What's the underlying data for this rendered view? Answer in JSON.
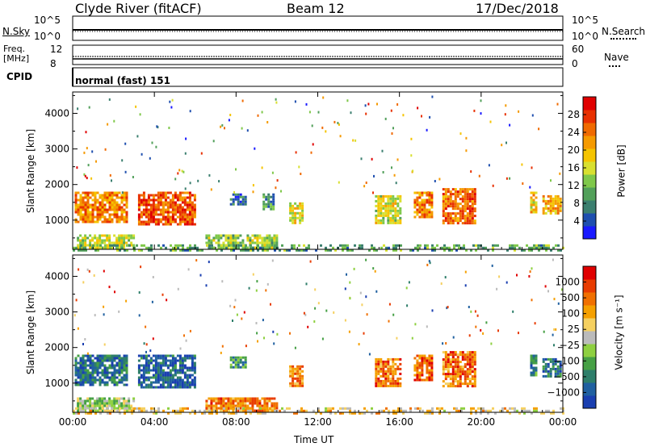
{
  "header": {
    "station": "Clyde River (fitACF)",
    "beam": "Beam 12",
    "date": "17/Dec/2018"
  },
  "status_panels": {
    "nsky_label": "N.Sky",
    "nsearch_label": "N.Search",
    "noise_ticks_left": [
      "10^5",
      "10^0"
    ],
    "noise_ticks_right": [
      "10^5",
      "10^0"
    ],
    "freq_label_1": "Freq.",
    "freq_label_2": "[MHz]",
    "freq_ticks": [
      "12",
      "8"
    ],
    "nave_label": "Nave",
    "nave_ticks": [
      "60",
      "0"
    ],
    "cpid_label": "CPID",
    "cpid_text": "normal (fast) 151"
  },
  "chart_data": [
    {
      "type": "heatmap",
      "panel": "power",
      "ylabel": "Slant Range [km]",
      "xlabel": "",
      "x_ticks": [
        "00:00",
        "04:00",
        "08:00",
        "12:00",
        "16:00",
        "20:00",
        "00:00"
      ],
      "y_ticks": [
        1000,
        2000,
        3000,
        4000
      ],
      "ylim": [
        180,
        4600
      ],
      "xlim_hours": [
        0,
        24
      ],
      "colorbar": {
        "label": "Power [dB]",
        "ticks": [
          "28",
          "24",
          "20",
          "16",
          "12",
          "8",
          "4"
        ],
        "colors": [
          "#1a1aff",
          "#1f4faf",
          "#3b7f6f",
          "#52a05a",
          "#7fc84a",
          "#d8e030",
          "#f5c400",
          "#f59a00",
          "#f06a00",
          "#e83000",
          "#e00000"
        ]
      },
      "patches": [
        {
          "t0": 0.1,
          "t1": 2.6,
          "r0": 950,
          "r1": 1800,
          "level": 0.75
        },
        {
          "t0": 3.2,
          "t1": 6.0,
          "r0": 850,
          "r1": 1800,
          "level": 0.85
        },
        {
          "t0": 7.7,
          "t1": 8.5,
          "r0": 1450,
          "r1": 1750,
          "level": 0.2
        },
        {
          "t0": 9.3,
          "t1": 9.8,
          "r0": 1300,
          "r1": 1750,
          "level": 0.25
        },
        {
          "t0": 10.6,
          "t1": 11.3,
          "r0": 900,
          "r1": 1500,
          "level": 0.55
        },
        {
          "t0": 14.8,
          "t1": 16.1,
          "r0": 900,
          "r1": 1700,
          "level": 0.5
        },
        {
          "t0": 16.7,
          "t1": 17.6,
          "r0": 1100,
          "r1": 1800,
          "level": 0.75
        },
        {
          "t0": 18.1,
          "t1": 19.7,
          "r0": 900,
          "r1": 1900,
          "level": 0.8
        },
        {
          "t0": 22.4,
          "t1": 22.7,
          "r0": 1200,
          "r1": 1800,
          "level": 0.6
        },
        {
          "t0": 23.0,
          "t1": 23.9,
          "r0": 1200,
          "r1": 1700,
          "level": 0.65
        },
        {
          "t0": 0.2,
          "t1": 3.0,
          "r0": 200,
          "r1": 600,
          "level": 0.45
        },
        {
          "t0": 6.5,
          "t1": 10.0,
          "r0": 200,
          "r1": 600,
          "level": 0.4
        },
        {
          "t0": 0.0,
          "t1": 24.0,
          "r0": 180,
          "r1": 320,
          "level": 0.3
        }
      ]
    },
    {
      "type": "heatmap",
      "panel": "velocity",
      "ylabel": "Slant Range [km]",
      "xlabel": "Time UT",
      "x_ticks": [
        "00:00",
        "04:00",
        "08:00",
        "12:00",
        "16:00",
        "20:00",
        "00:00"
      ],
      "y_ticks": [
        1000,
        2000,
        3000,
        4000
      ],
      "ylim": [
        180,
        4600
      ],
      "xlim_hours": [
        0,
        24
      ],
      "colorbar": {
        "label": "Velocity [m s⁻¹]",
        "ticks": [
          "1000",
          "500",
          "100",
          "25",
          "−25",
          "−100",
          "−500",
          "−1000"
        ],
        "colors": [
          "#1a3fb0",
          "#2060a0",
          "#2e7e6a",
          "#46a045",
          "#8ed040",
          "#bbbbbb",
          "#f5d060",
          "#f5a000",
          "#f07000",
          "#e83c00",
          "#e00000"
        ]
      },
      "patches": [
        {
          "t0": 0.1,
          "t1": 2.6,
          "r0": 950,
          "r1": 1800,
          "level": 0.15
        },
        {
          "t0": 3.2,
          "t1": 6.0,
          "r0": 850,
          "r1": 1800,
          "level": 0.1
        },
        {
          "t0": 7.7,
          "t1": 8.5,
          "r0": 1450,
          "r1": 1750,
          "level": 0.2
        },
        {
          "t0": 10.6,
          "t1": 11.3,
          "r0": 900,
          "r1": 1500,
          "level": 0.75
        },
        {
          "t0": 14.8,
          "t1": 16.1,
          "r0": 900,
          "r1": 1700,
          "level": 0.8
        },
        {
          "t0": 16.7,
          "t1": 17.6,
          "r0": 1100,
          "r1": 1800,
          "level": 0.82
        },
        {
          "t0": 18.1,
          "t1": 19.7,
          "r0": 900,
          "r1": 1900,
          "level": 0.8
        },
        {
          "t0": 22.4,
          "t1": 22.7,
          "r0": 1200,
          "r1": 1800,
          "level": 0.2
        },
        {
          "t0": 23.0,
          "t1": 23.9,
          "r0": 1200,
          "r1": 1700,
          "level": 0.15
        },
        {
          "t0": 0.2,
          "t1": 3.0,
          "r0": 200,
          "r1": 600,
          "level": 0.45
        },
        {
          "t0": 6.5,
          "t1": 10.0,
          "r0": 200,
          "r1": 600,
          "level": 0.8
        },
        {
          "t0": 0.0,
          "t1": 24.0,
          "r0": 180,
          "r1": 320,
          "level": 0.6
        }
      ]
    }
  ]
}
